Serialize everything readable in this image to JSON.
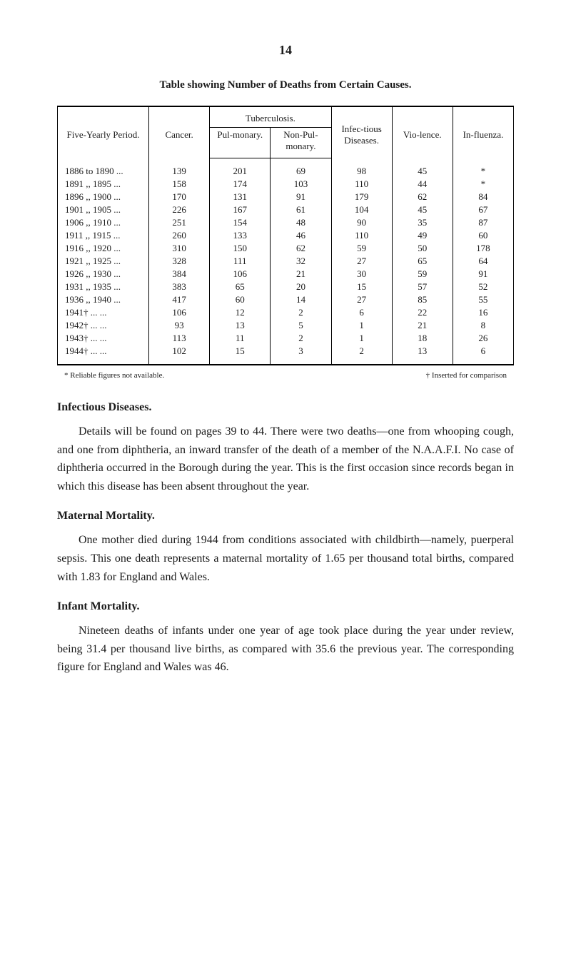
{
  "page_number": "14",
  "table": {
    "title": "Table showing Number of Deaths from Certain Causes.",
    "headers": {
      "period": "Five-Yearly Period.",
      "cancer": "Cancer.",
      "tuberculosis": "Tuberculosis.",
      "pulmonary": "Pul-monary.",
      "non_pulmonary": "Non-Pul-monary.",
      "infectious": "Infec-tious Diseases.",
      "violence": "Vio-lence.",
      "influenza": "In-fluenza."
    },
    "rows": [
      {
        "period": "1886 to 1890 ...",
        "cancer": "139",
        "pul": "201",
        "nonpul": "69",
        "infec": "98",
        "vio": "45",
        "flu": "*"
      },
      {
        "period": "1891 ,, 1895 ...",
        "cancer": "158",
        "pul": "174",
        "nonpul": "103",
        "infec": "110",
        "vio": "44",
        "flu": "*"
      },
      {
        "period": "1896 ,, 1900 ...",
        "cancer": "170",
        "pul": "131",
        "nonpul": "91",
        "infec": "179",
        "vio": "62",
        "flu": "84"
      },
      {
        "period": "1901 ,, 1905 ...",
        "cancer": "226",
        "pul": "167",
        "nonpul": "61",
        "infec": "104",
        "vio": "45",
        "flu": "67"
      },
      {
        "period": "1906 ,, 1910 ...",
        "cancer": "251",
        "pul": "154",
        "nonpul": "48",
        "infec": "90",
        "vio": "35",
        "flu": "87"
      },
      {
        "period": "1911 ,, 1915 ...",
        "cancer": "260",
        "pul": "133",
        "nonpul": "46",
        "infec": "110",
        "vio": "49",
        "flu": "60"
      },
      {
        "period": "1916 ,, 1920 ...",
        "cancer": "310",
        "pul": "150",
        "nonpul": "62",
        "infec": "59",
        "vio": "50",
        "flu": "178"
      },
      {
        "period": "1921 ,, 1925 ...",
        "cancer": "328",
        "pul": "111",
        "nonpul": "32",
        "infec": "27",
        "vio": "65",
        "flu": "64"
      },
      {
        "period": "1926 ,, 1930 ...",
        "cancer": "384",
        "pul": "106",
        "nonpul": "21",
        "infec": "30",
        "vio": "59",
        "flu": "91"
      },
      {
        "period": "1931 ,, 1935 ...",
        "cancer": "383",
        "pul": "65",
        "nonpul": "20",
        "infec": "15",
        "vio": "57",
        "flu": "52"
      },
      {
        "period": "1936 ,, 1940 ...",
        "cancer": "417",
        "pul": "60",
        "nonpul": "14",
        "infec": "27",
        "vio": "85",
        "flu": "55"
      },
      {
        "period": "1941† ...     ...",
        "cancer": "106",
        "pul": "12",
        "nonpul": "2",
        "infec": "6",
        "vio": "22",
        "flu": "16"
      },
      {
        "period": "1942† ...     ...",
        "cancer": "93",
        "pul": "13",
        "nonpul": "5",
        "infec": "1",
        "vio": "21",
        "flu": "8"
      },
      {
        "period": "1943† ...     ...",
        "cancer": "113",
        "pul": "11",
        "nonpul": "2",
        "infec": "1",
        "vio": "18",
        "flu": "26"
      },
      {
        "period": "1944† ...     ...",
        "cancer": "102",
        "pul": "15",
        "nonpul": "3",
        "infec": "2",
        "vio": "13",
        "flu": "6"
      }
    ],
    "footnotes": {
      "left": "* Reliable figures not available.",
      "right": "† Inserted for comparison"
    }
  },
  "sections": [
    {
      "heading": "Infectious Diseases.",
      "text": "Details will be found on pages 39 to 44. There were two deaths—one from whooping cough, and one from diphtheria, an inward transfer of the death of a member of the N.A.A.F.I. No case of diphtheria occurred in the Borough during the year. This is the first occasion since records began in which this disease has been absent throughout the year."
    },
    {
      "heading": "Maternal Mortality.",
      "text": "One mother died during 1944 from conditions associated with childbirth—namely, puerperal sepsis. This one death represents a maternal mortality of 1.65 per thousand total births, compared with 1.83 for England and Wales."
    },
    {
      "heading": "Infant Mortality.",
      "text": "Nineteen deaths of infants under one year of age took place during the year under review, being 31.4 per thousand live births, as compared with 35.6 the previous year. The corresponding figure for England and Wales was 46."
    }
  ]
}
